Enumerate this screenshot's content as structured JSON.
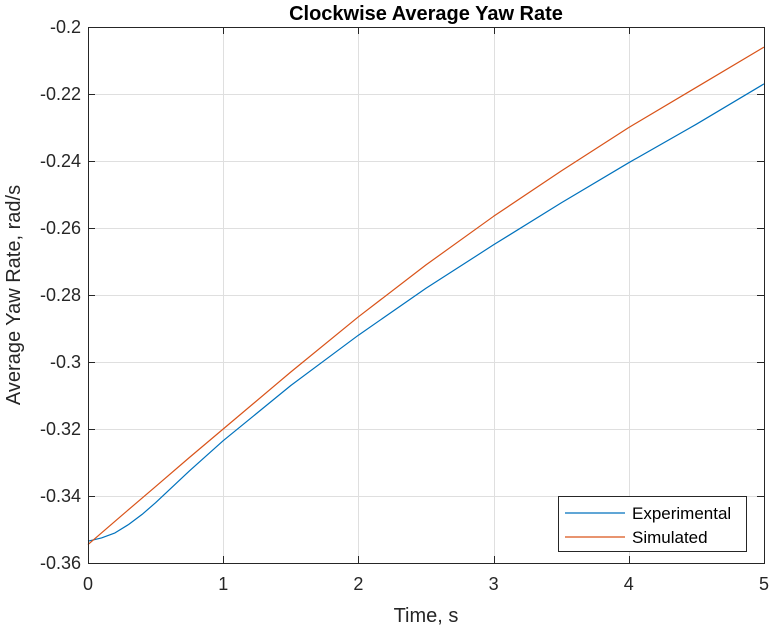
{
  "chart_data": {
    "type": "line",
    "title": "Clockwise Average Yaw Rate",
    "xlabel": "Time, s",
    "ylabel": "Average Yaw Rate, rad/s",
    "xlim": [
      0,
      5
    ],
    "ylim": [
      -0.36,
      -0.2
    ],
    "xticks": [
      0,
      1,
      2,
      3,
      4,
      5
    ],
    "xtick_labels": [
      "0",
      "1",
      "2",
      "3",
      "4",
      "5"
    ],
    "yticks": [
      -0.36,
      -0.34,
      -0.32,
      -0.3,
      -0.28,
      -0.26,
      -0.24,
      -0.22,
      -0.2
    ],
    "ytick_labels": [
      "-0.36",
      "-0.34",
      "-0.32",
      "-0.3",
      "-0.28",
      "-0.26",
      "-0.24",
      "-0.22",
      "-0.2"
    ],
    "grid": true,
    "legend_position": "bottom-right",
    "series": [
      {
        "name": "Experimental",
        "color": "#0072BD",
        "x": [
          0,
          0.1,
          0.2,
          0.3,
          0.4,
          0.5,
          0.75,
          1.0,
          1.5,
          2.0,
          2.5,
          3.0,
          3.5,
          4.0,
          4.5,
          5.0
        ],
        "y": [
          -0.3535,
          -0.3525,
          -0.351,
          -0.3485,
          -0.3455,
          -0.342,
          -0.3325,
          -0.3235,
          -0.307,
          -0.292,
          -0.278,
          -0.265,
          -0.2525,
          -0.2405,
          -0.229,
          -0.217
        ]
      },
      {
        "name": "Simulated",
        "color": "#D95319",
        "x": [
          0,
          0.25,
          0.5,
          0.75,
          1.0,
          1.5,
          2.0,
          2.5,
          3.0,
          3.5,
          4.0,
          4.5,
          5.0
        ],
        "y": [
          -0.3545,
          -0.3458,
          -0.3372,
          -0.3285,
          -0.32,
          -0.303,
          -0.2865,
          -0.271,
          -0.2565,
          -0.243,
          -0.23,
          -0.218,
          -0.206
        ]
      }
    ]
  }
}
